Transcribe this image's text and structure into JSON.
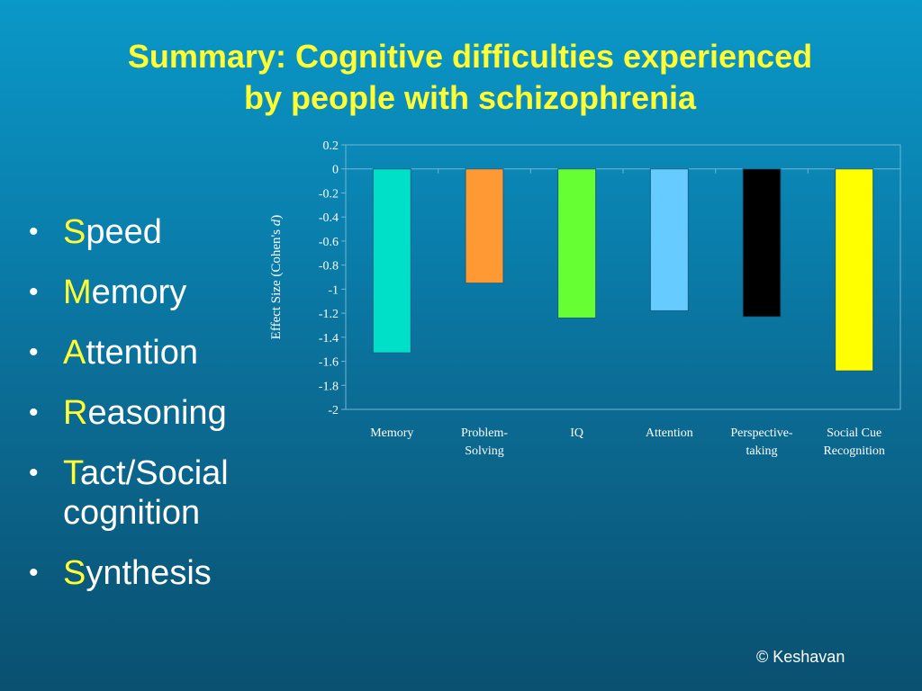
{
  "title": {
    "line1": "Summary: Cognitive difficulties experienced",
    "line2": "by people with schizophrenia"
  },
  "bullets": [
    {
      "first": "S",
      "rest": "peed"
    },
    {
      "first": "M",
      "rest": "emory"
    },
    {
      "first": "A",
      "rest": "ttention"
    },
    {
      "first": "R",
      "rest": "easoning"
    },
    {
      "first": "T",
      "rest": "act/Social cognition"
    },
    {
      "first": "S",
      "rest": "ynthesis"
    }
  ],
  "copyright": "© Keshavan",
  "colors": {
    "title": "#ffff33",
    "bullet_initial": "#ffff33",
    "text": "#ffffff"
  },
  "chart_data": {
    "type": "bar",
    "categories": [
      [
        "Memory"
      ],
      [
        "Problem-",
        "Solving"
      ],
      [
        "IQ"
      ],
      [
        "Attention"
      ],
      [
        "Perspective-",
        "taking"
      ],
      [
        "Social Cue",
        "Recognition"
      ]
    ],
    "values": [
      -1.53,
      -0.95,
      -1.24,
      -1.18,
      -1.23,
      -1.68
    ],
    "bar_colors": [
      "#00e0c8",
      "#ff9933",
      "#66ff33",
      "#66ccff",
      "#000000",
      "#ffff00"
    ],
    "ylabel": "Effect Size (Cohen's d)",
    "ylabel_parts": [
      "Effect Size (Cohen's ",
      "d",
      ")"
    ],
    "ylim": [
      -2,
      0.2
    ],
    "yticks": [
      "0.2",
      "0",
      "-0.2",
      "-0.4",
      "-0.6",
      "-0.8",
      "-1",
      "-1.2",
      "-1.4",
      "-1.6",
      "-1.8",
      "-2"
    ],
    "ytick_values": [
      0.2,
      0,
      -0.2,
      -0.4,
      -0.6,
      -0.8,
      -1,
      -1.2,
      -1.4,
      -1.6,
      -1.8,
      -2
    ],
    "grid": false,
    "legend": "none"
  }
}
